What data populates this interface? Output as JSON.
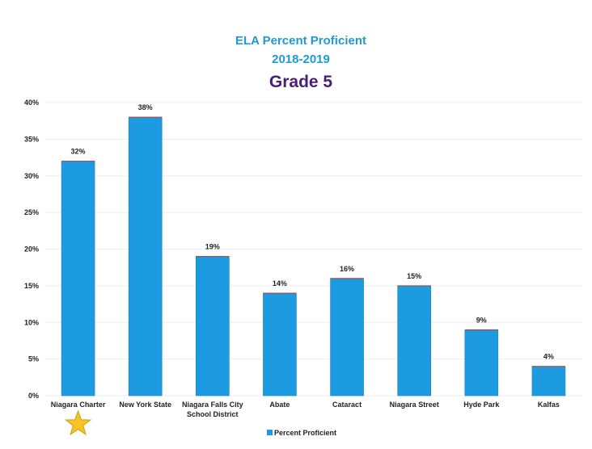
{
  "colors": {
    "title_main": "#1f9ad6",
    "title_grade": "#4a1e78",
    "bar_fill": "#1d9be0",
    "bar_top": "#c0392b",
    "grid": "#eeeeee",
    "star": "#f7c325"
  },
  "chart_data": {
    "type": "bar",
    "title": "ELA Percent Proficient",
    "subtitle": "2018-2019",
    "grade": "Grade 5",
    "categories": [
      [
        "Niagara Charter"
      ],
      [
        "New York State"
      ],
      [
        "Niagara Falls City",
        "School District"
      ],
      [
        "Abate"
      ],
      [
        "Cataract"
      ],
      [
        "Niagara Street"
      ],
      [
        "Hyde Park"
      ],
      [
        "Kalfas"
      ]
    ],
    "series": [
      {
        "name": "Percent Proficient",
        "values": [
          32,
          38,
          19,
          14,
          16,
          15,
          9,
          4
        ]
      }
    ],
    "data_labels": [
      "32%",
      "38%",
      "19%",
      "14%",
      "16%",
      "15%",
      "9%",
      "4%"
    ],
    "ylim": [
      0,
      40
    ],
    "yticks": [
      "0%",
      "5%",
      "10%",
      "15%",
      "20%",
      "25%",
      "30%",
      "35%",
      "40%"
    ],
    "highlight_icon": "star-icon",
    "highlight_index": 0,
    "legend_position": "bottom",
    "grid": true
  }
}
